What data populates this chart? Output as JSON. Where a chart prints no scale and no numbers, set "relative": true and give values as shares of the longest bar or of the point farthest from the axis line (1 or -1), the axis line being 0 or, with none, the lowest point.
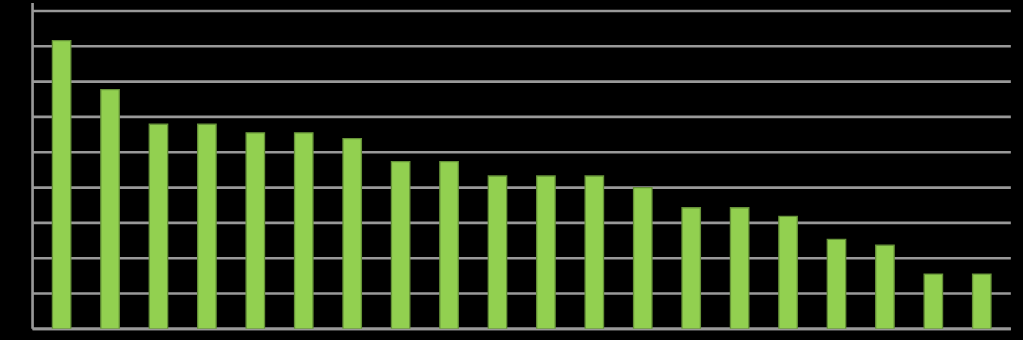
{
  "chart_data": {
    "type": "bar",
    "relative": true,
    "grid": "y",
    "color": "#92d050",
    "categories": [
      null,
      null,
      null,
      null,
      null,
      null,
      null,
      null,
      null,
      null,
      null,
      null,
      null,
      null,
      null,
      null,
      null,
      null,
      null,
      null
    ],
    "values": [
      1,
      0.83,
      0.71,
      0.71,
      0.68,
      0.68,
      0.66,
      0.58,
      0.58,
      0.53,
      0.53,
      0.53,
      0.49,
      0.42,
      0.42,
      0.39,
      0.31,
      0.29,
      0.19,
      0.19
    ]
  }
}
